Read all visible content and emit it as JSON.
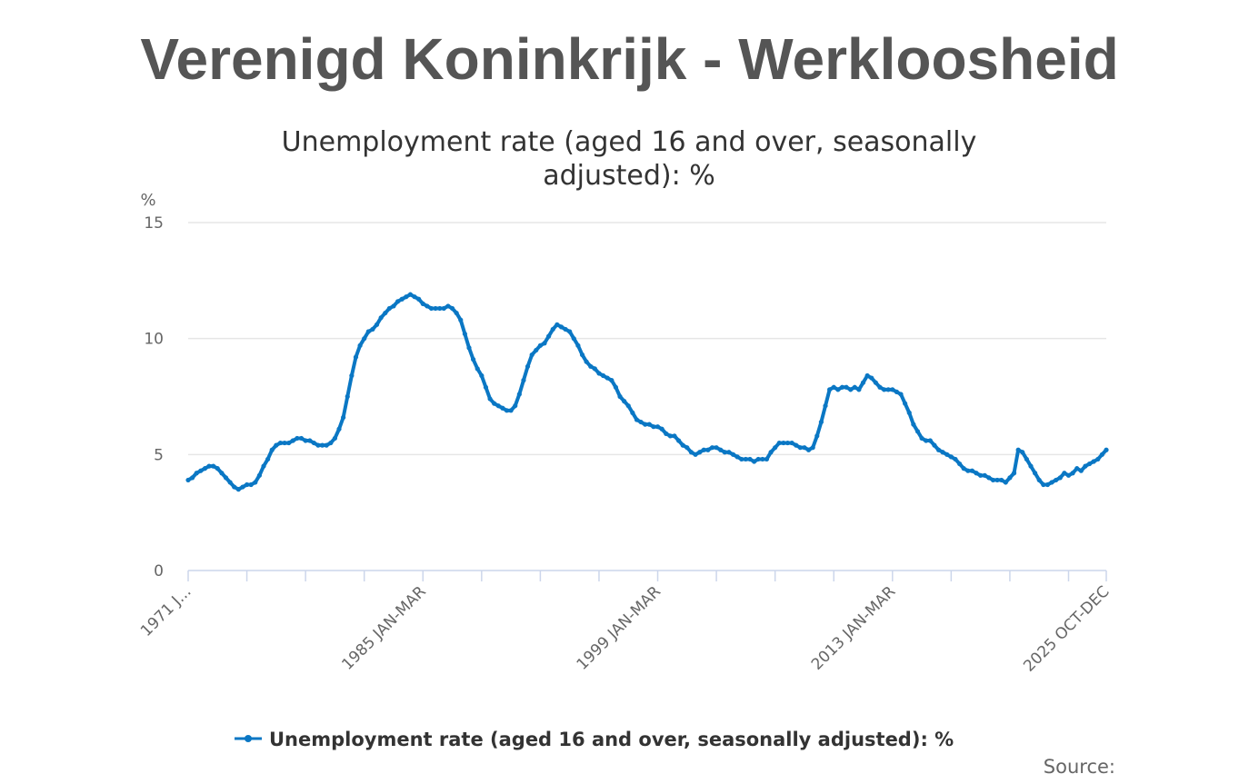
{
  "heading": "Verenigd Koninkrijk - Werkloosheid",
  "source": "Source:",
  "chart_data": {
    "type": "line",
    "title": "Unemployment rate (aged 16 and over, seasonally adjusted): %",
    "y_label": "%",
    "ylim": [
      0,
      15
    ],
    "yticks": [
      0,
      5,
      10,
      15
    ],
    "grid": true,
    "legend": "bottom",
    "categories": [
      "1971 J...",
      null,
      null,
      null,
      null,
      null,
      null,
      null,
      null,
      null,
      null,
      null,
      null,
      null,
      null,
      null,
      null,
      null,
      null,
      null,
      null,
      null,
      null,
      null,
      null,
      null,
      null,
      null,
      null,
      null,
      null,
      null,
      null,
      null,
      null,
      null,
      null,
      null,
      null,
      null,
      null,
      null,
      null,
      null,
      null,
      null,
      null,
      null,
      null,
      null,
      null,
      null,
      null,
      null,
      null,
      null,
      "1985 JAN-MAR",
      null,
      null,
      null,
      null,
      null,
      null,
      null,
      null,
      null,
      null,
      null,
      null,
      null,
      null,
      null,
      null,
      null,
      null,
      null,
      null,
      null,
      null,
      null,
      null,
      null,
      null,
      null,
      null,
      null,
      null,
      null,
      null,
      null,
      null,
      null,
      null,
      null,
      null,
      null,
      null,
      null,
      null,
      null,
      null,
      null,
      null,
      null,
      null,
      null,
      null,
      null,
      null,
      null,
      null,
      null,
      "1999 JAN-MAR",
      null,
      null,
      null,
      null,
      null,
      null,
      null,
      null,
      null,
      null,
      null,
      null,
      null,
      null,
      null,
      null,
      null,
      null,
      null,
      null,
      null,
      null,
      null,
      null,
      null,
      null,
      null,
      null,
      null,
      null,
      null,
      null,
      null,
      null,
      null,
      null,
      null,
      null,
      null,
      null,
      null,
      null,
      null,
      null,
      null,
      null,
      null,
      null,
      null,
      null,
      null,
      null,
      null,
      null,
      null,
      "2013 JAN-MAR",
      null,
      null,
      null,
      null,
      null,
      null,
      null,
      null,
      null,
      null,
      null,
      null,
      null,
      null,
      null,
      null,
      null,
      null,
      null,
      null,
      null,
      null,
      null,
      null,
      null,
      null,
      null,
      null,
      null,
      null,
      null,
      null,
      null,
      null,
      null,
      null,
      null,
      null,
      null,
      null,
      null,
      null,
      null,
      null,
      null,
      null,
      null,
      null,
      null,
      null,
      "2025 OCT-DEC"
    ],
    "series": [
      {
        "name": "Unemployment rate (aged 16 and over, seasonally adjusted): %",
        "color": "#0a77c4",
        "values": [
          3.9,
          4.0,
          4.2,
          4.3,
          4.4,
          4.5,
          4.5,
          4.4,
          4.2,
          4.0,
          3.8,
          3.6,
          3.5,
          3.6,
          3.7,
          3.7,
          3.8,
          4.1,
          4.5,
          4.8,
          5.2,
          5.4,
          5.5,
          5.5,
          5.5,
          5.6,
          5.7,
          5.7,
          5.6,
          5.6,
          5.5,
          5.4,
          5.4,
          5.4,
          5.5,
          5.7,
          6.1,
          6.6,
          7.5,
          8.4,
          9.2,
          9.7,
          10.0,
          10.3,
          10.4,
          10.6,
          10.9,
          11.1,
          11.3,
          11.4,
          11.6,
          11.7,
          11.8,
          11.9,
          11.8,
          11.7,
          11.5,
          11.4,
          11.3,
          11.3,
          11.3,
          11.3,
          11.4,
          11.3,
          11.1,
          10.8,
          10.2,
          9.6,
          9.1,
          8.7,
          8.4,
          7.9,
          7.4,
          7.2,
          7.1,
          7.0,
          6.9,
          6.9,
          7.1,
          7.6,
          8.2,
          8.8,
          9.3,
          9.5,
          9.7,
          9.8,
          10.1,
          10.4,
          10.6,
          10.5,
          10.4,
          10.3,
          10.0,
          9.7,
          9.3,
          9.0,
          8.8,
          8.7,
          8.5,
          8.4,
          8.3,
          8.2,
          7.9,
          7.5,
          7.3,
          7.1,
          6.8,
          6.5,
          6.4,
          6.3,
          6.3,
          6.2,
          6.2,
          6.1,
          5.9,
          5.8,
          5.8,
          5.6,
          5.4,
          5.3,
          5.1,
          5.0,
          5.1,
          5.2,
          5.2,
          5.3,
          5.3,
          5.2,
          5.1,
          5.1,
          5.0,
          4.9,
          4.8,
          4.8,
          4.8,
          4.7,
          4.8,
          4.8,
          4.8,
          5.1,
          5.3,
          5.5,
          5.5,
          5.5,
          5.5,
          5.4,
          5.3,
          5.3,
          5.2,
          5.3,
          5.8,
          6.4,
          7.1,
          7.8,
          7.9,
          7.8,
          7.9,
          7.9,
          7.8,
          7.9,
          7.8,
          8.1,
          8.4,
          8.3,
          8.1,
          7.9,
          7.8,
          7.8,
          7.8,
          7.7,
          7.6,
          7.2,
          6.8,
          6.3,
          6.0,
          5.7,
          5.6,
          5.6,
          5.4,
          5.2,
          5.1,
          5.0,
          4.9,
          4.8,
          4.6,
          4.4,
          4.3,
          4.3,
          4.2,
          4.1,
          4.1,
          4.0,
          3.9,
          3.9,
          3.9,
          3.8,
          4.0,
          4.2,
          5.2,
          5.1,
          4.8,
          4.5,
          4.2,
          3.9,
          3.7,
          3.7,
          3.8,
          3.9,
          4.0,
          4.2,
          4.1,
          4.2,
          4.4,
          4.3,
          4.5,
          4.6,
          4.7,
          4.8,
          5.0,
          5.2
        ]
      }
    ]
  }
}
